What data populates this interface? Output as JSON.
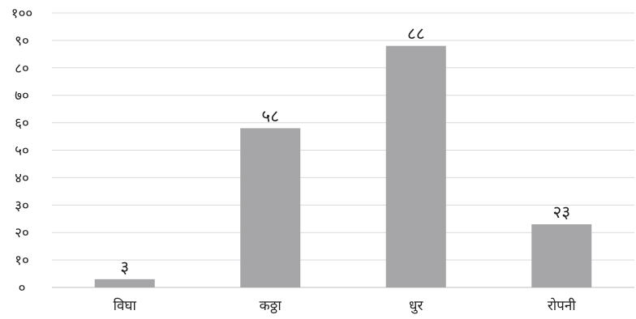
{
  "chart_data": {
    "type": "bar",
    "categories": [
      "विघा",
      "कठ्ठा",
      "धुर",
      "रोपनी"
    ],
    "values": [
      3,
      58,
      88,
      23
    ],
    "value_labels": [
      "३",
      "५८",
      "८८",
      "२३"
    ],
    "y_tick_labels": [
      "०",
      "१०",
      "२०",
      "३०",
      "४०",
      "५०",
      "६०",
      "७०",
      "८०",
      "९०",
      "१००"
    ],
    "ylim": [
      0,
      100
    ],
    "title": "",
    "xlabel": "",
    "ylabel": "",
    "grid": true,
    "legend": "none",
    "colors": {
      "bar": "#a6a6a8",
      "grid": "#d9d9d9",
      "axis": "#bfbfbf",
      "text": "#222222"
    }
  }
}
